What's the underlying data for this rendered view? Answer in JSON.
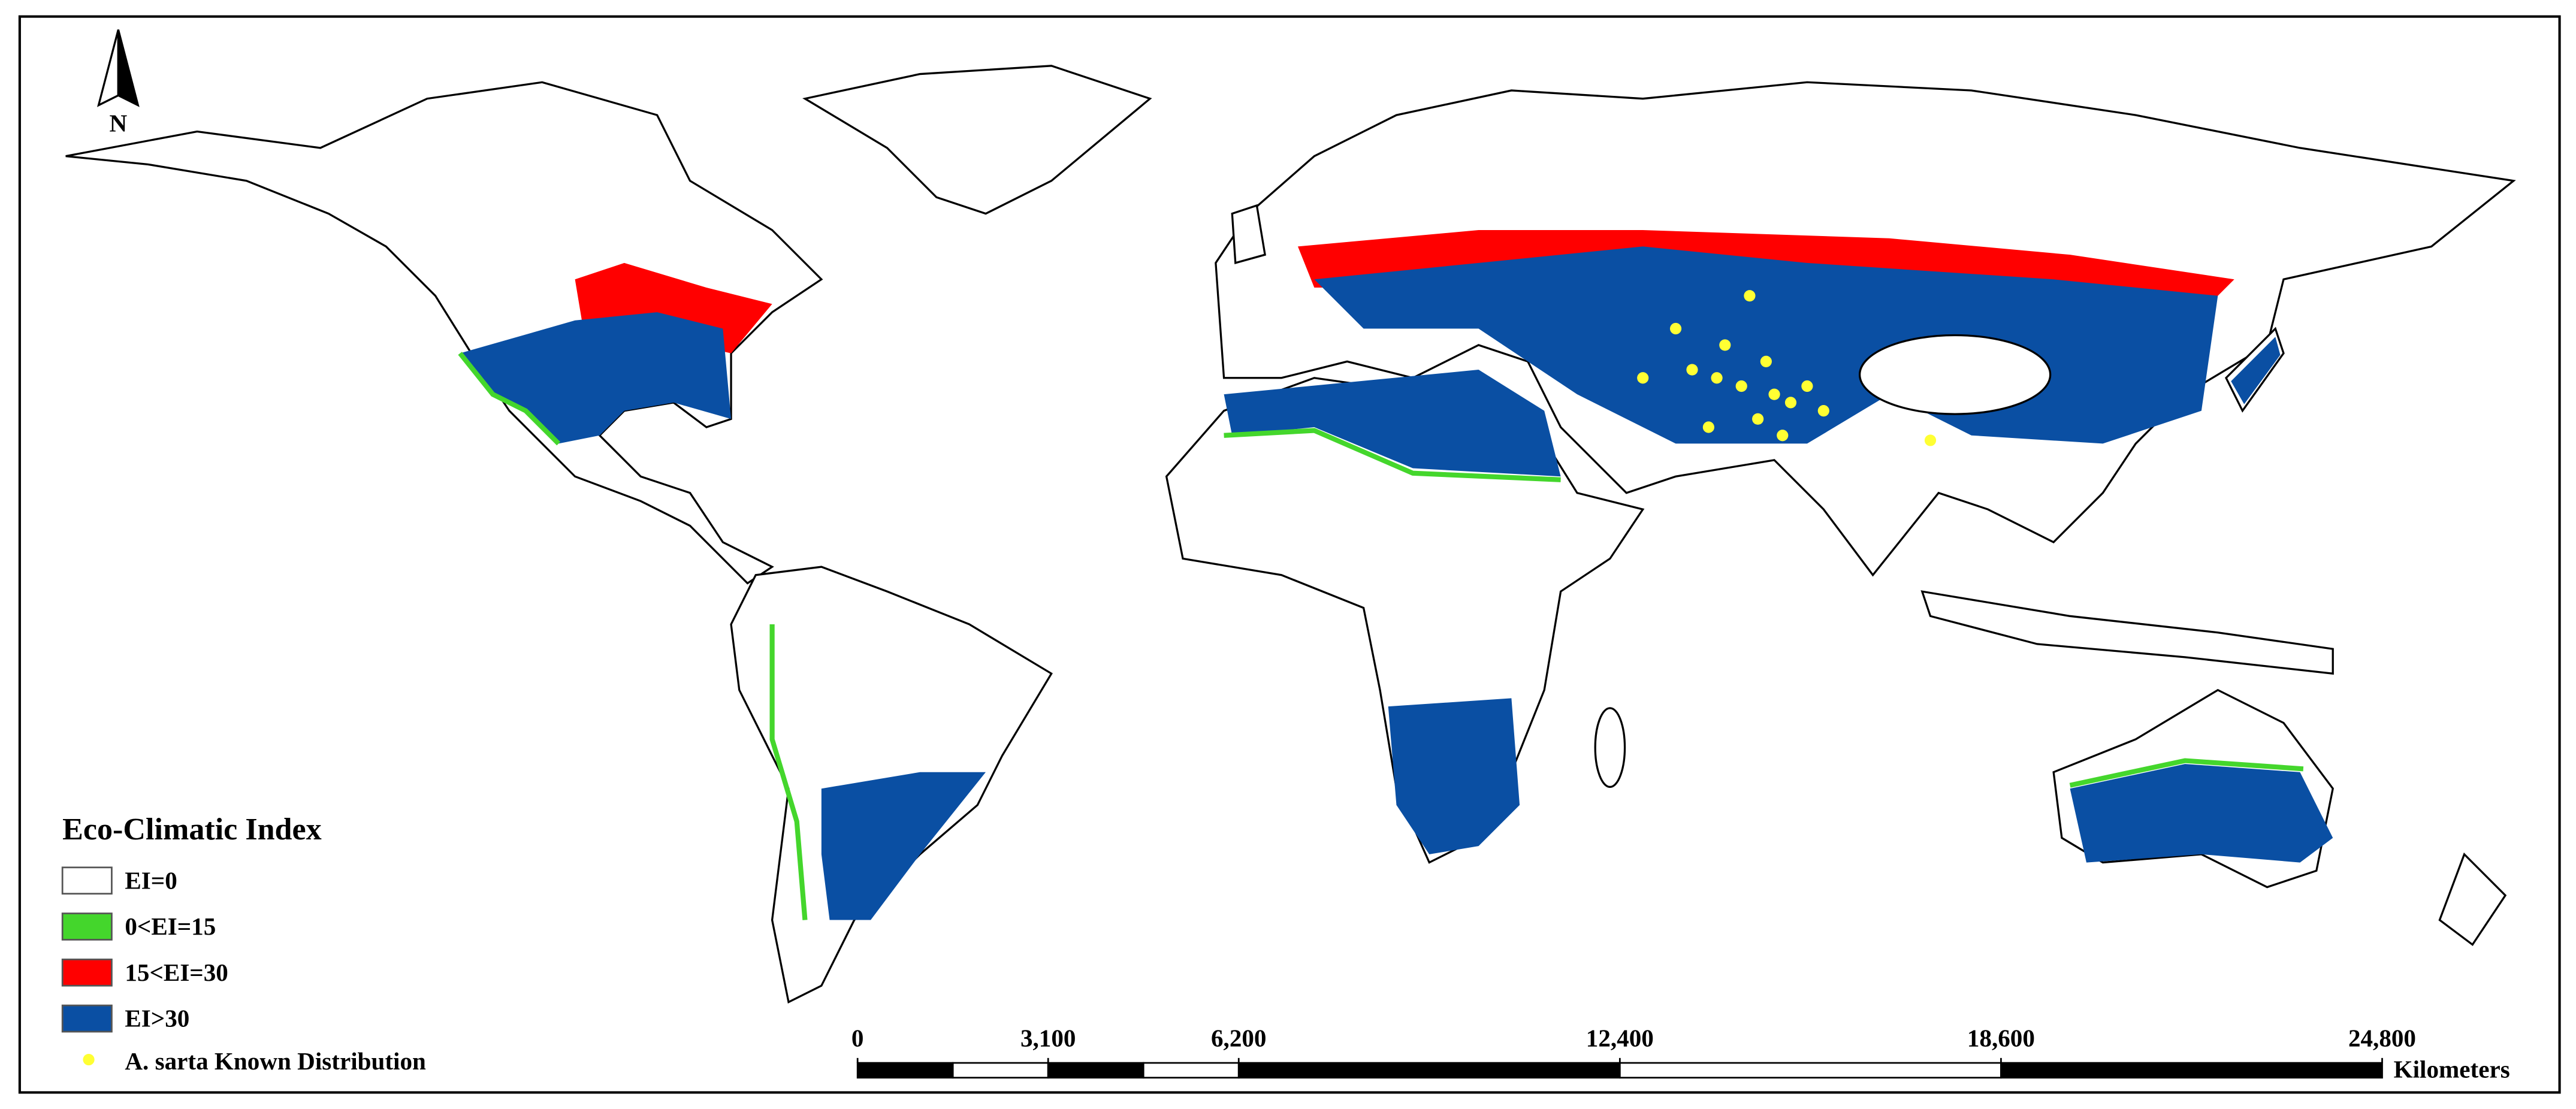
{
  "north_arrow": {
    "label": "N"
  },
  "legend": {
    "title": "Eco-Climatic Index",
    "items": [
      {
        "label": "EI=0",
        "color": "#ffffff"
      },
      {
        "label": "0<EI=15",
        "color": "#44d62c"
      },
      {
        "label": "15<EI=30",
        "color": "#ff0000"
      },
      {
        "label": "EI>30",
        "color": "#0a4fa3"
      }
    ],
    "points": {
      "label": "A. sarta Known Distribution",
      "color": "#ffff33"
    }
  },
  "scale_bar": {
    "ticks": [
      0,
      {
        "value": 3100,
        "label": "3,100"
      },
      {
        "value": 6200,
        "label": "6,200"
      },
      {
        "value": 12400,
        "label": "12,400"
      },
      {
        "value": 18600,
        "label": "18,600"
      },
      {
        "value": 24800,
        "label": "24,800"
      }
    ],
    "unit": "Kilometers"
  }
}
